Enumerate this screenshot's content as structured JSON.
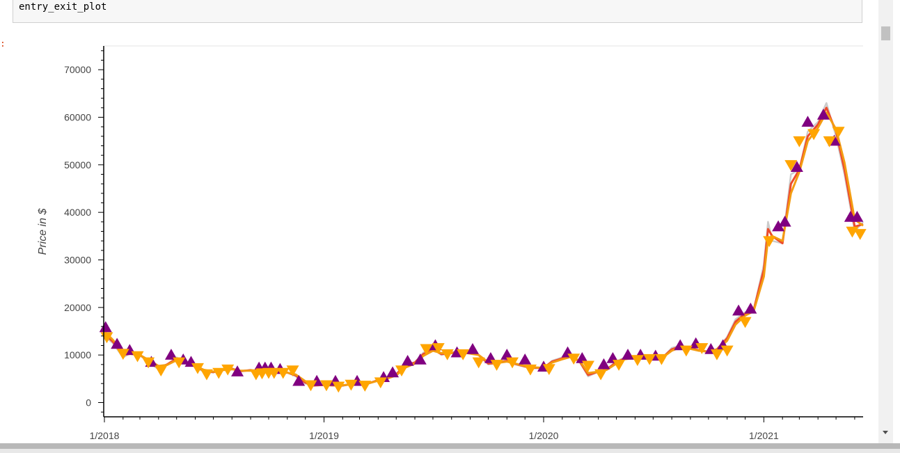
{
  "cell": {
    "code": "entry_exit_plot",
    "out_prompt": ":"
  },
  "chart_data": {
    "type": "line",
    "title": "",
    "xlabel": "",
    "ylabel": "Price in $",
    "x_range": [
      "2018-01-01",
      "2021-06-15"
    ],
    "ylim": [
      -3000,
      75000
    ],
    "grid": false,
    "y_ticks": [
      "0",
      "10000",
      "20000",
      "30000",
      "40000",
      "50000",
      "60000",
      "70000"
    ],
    "x_ticks": [
      "1/2018",
      "1/2019",
      "1/2020",
      "1/2021"
    ],
    "x_tick_dates": [
      "2018-01-01",
      "2019-01-01",
      "2020-01-01",
      "2021-01-01"
    ],
    "colors": {
      "close": "#cccccc",
      "fast_ma": "#ee4b2b",
      "slow_ma": "#f39c12",
      "entry": "#800080",
      "exit": "#ffa500"
    },
    "series": [
      {
        "type": "line",
        "x": [
          "2018-01-01",
          "2018-01-15",
          "2018-02-01",
          "2018-02-15",
          "2018-03-01",
          "2018-03-15",
          "2018-04-01",
          "2018-04-15",
          "2018-05-01",
          "2018-05-15",
          "2018-06-01",
          "2018-06-15",
          "2018-07-01",
          "2018-07-15",
          "2018-08-01",
          "2018-08-15",
          "2018-09-01",
          "2018-09-15",
          "2018-10-01",
          "2018-10-15",
          "2018-11-01",
          "2018-11-15",
          "2018-12-01",
          "2018-12-15",
          "2019-01-01",
          "2019-01-15",
          "2019-02-01",
          "2019-02-15",
          "2019-03-01",
          "2019-03-15",
          "2019-04-01",
          "2019-04-15",
          "2019-05-01",
          "2019-05-15",
          "2019-06-01",
          "2019-06-15",
          "2019-07-01",
          "2019-07-15",
          "2019-08-01",
          "2019-08-15",
          "2019-09-01",
          "2019-09-15",
          "2019-10-01",
          "2019-10-15",
          "2019-11-01",
          "2019-11-15",
          "2019-12-01",
          "2019-12-15",
          "2020-01-01",
          "2020-01-15",
          "2020-02-01",
          "2020-02-15",
          "2020-03-01",
          "2020-03-15",
          "2020-04-01",
          "2020-04-15",
          "2020-05-01",
          "2020-05-15",
          "2020-06-01",
          "2020-06-15",
          "2020-07-01",
          "2020-07-15",
          "2020-08-01",
          "2020-08-15",
          "2020-09-01",
          "2020-09-15",
          "2020-10-01",
          "2020-10-15",
          "2020-11-01",
          "2020-11-15",
          "2020-12-01",
          "2020-12-15",
          "2021-01-01",
          "2021-01-08",
          "2021-01-15",
          "2021-02-01",
          "2021-02-15",
          "2021-03-01",
          "2021-03-15",
          "2021-04-01",
          "2021-04-15",
          "2021-05-01",
          "2021-05-15",
          "2021-06-01",
          "2021-06-15"
        ],
        "values": [
          14000,
          12500,
          9500,
          10500,
          10000,
          8500,
          7000,
          8000,
          9500,
          8500,
          7500,
          6500,
          6300,
          7000,
          7200,
          6500,
          6900,
          6500,
          6500,
          6400,
          6300,
          5500,
          4000,
          3500,
          3700,
          3600,
          3500,
          3900,
          3800,
          4000,
          4800,
          5200,
          6000,
          8000,
          8500,
          10500,
          11500,
          10000,
          10500,
          11000,
          10500,
          10000,
          8000,
          8300,
          9000,
          8000,
          7500,
          7200,
          7200,
          8800,
          9500,
          10000,
          8500,
          5500,
          6500,
          7000,
          8700,
          9500,
          9800,
          9500,
          9200,
          9200,
          11500,
          12000,
          11500,
          11000,
          10600,
          11200,
          13800,
          17500,
          19000,
          19500,
          29000,
          38000,
          34000,
          33500,
          48000,
          49000,
          57000,
          59000,
          63000,
          56000,
          48000,
          36000,
          38000
        ],
        "color": "#cccccc"
      },
      {
        "type": "line",
        "values": [
          14500,
          12800,
          10000,
          10300,
          10000,
          8800,
          7300,
          8000,
          9200,
          8600,
          7600,
          6700,
          6400,
          6900,
          7100,
          6600,
          6800,
          6500,
          6500,
          6400,
          6300,
          5700,
          4200,
          3600,
          3700,
          3600,
          3600,
          3850,
          3800,
          4000,
          4700,
          5100,
          5900,
          7700,
          8400,
          10200,
          11200,
          10200,
          10400,
          10800,
          10400,
          10000,
          8200,
          8300,
          8800,
          8100,
          7600,
          7300,
          7300,
          8600,
          9300,
          9800,
          8600,
          5800,
          6500,
          7000,
          8500,
          9300,
          9600,
          9500,
          9200,
          9300,
          11200,
          11800,
          11400,
          11000,
          10700,
          11200,
          13500,
          17000,
          18700,
          19400,
          28000,
          36500,
          35000,
          33500,
          46000,
          49000,
          56000,
          58500,
          62000,
          57000,
          49000,
          37000,
          37500
        ],
        "color": "#ee4b2b"
      },
      {
        "type": "line",
        "values": [
          15000,
          13200,
          10600,
          10200,
          10000,
          9000,
          7700,
          7900,
          8900,
          8600,
          7700,
          6900,
          6500,
          6800,
          7000,
          6700,
          6700,
          6500,
          6500,
          6400,
          6300,
          5900,
          4500,
          3800,
          3700,
          3650,
          3650,
          3800,
          3800,
          4000,
          4600,
          5000,
          5700,
          7300,
          8200,
          9800,
          10900,
          10400,
          10400,
          10600,
          10300,
          10000,
          8500,
          8300,
          8600,
          8200,
          7700,
          7400,
          7300,
          8400,
          9100,
          9600,
          8800,
          6200,
          6500,
          6900,
          8200,
          9100,
          9400,
          9400,
          9200,
          9300,
          10900,
          11600,
          11300,
          10900,
          10700,
          11100,
          13000,
          16400,
          18300,
          19200,
          26500,
          34500,
          35000,
          34000,
          44000,
          48500,
          55000,
          57800,
          61000,
          57500,
          50500,
          38500,
          37200
        ],
        "color": "#f39c12"
      }
    ],
    "entries": {
      "x": [
        "2018-01-03",
        "2018-01-22",
        "2018-02-12",
        "2018-03-20",
        "2018-04-22",
        "2018-05-12",
        "2018-05-25",
        "2018-08-10",
        "2018-09-15",
        "2018-09-25",
        "2018-10-05",
        "2018-10-20",
        "2018-11-20",
        "2018-12-20",
        "2019-01-20",
        "2019-02-25",
        "2019-04-10",
        "2019-04-25",
        "2019-05-20",
        "2019-06-10",
        "2019-07-05",
        "2019-08-10",
        "2019-09-05",
        "2019-10-05",
        "2019-11-01",
        "2019-12-01",
        "2020-01-01",
        "2020-02-10",
        "2020-03-05",
        "2020-04-10",
        "2020-04-25",
        "2020-05-20",
        "2020-06-10",
        "2020-07-05",
        "2020-08-15",
        "2020-09-10",
        "2020-10-05",
        "2020-10-25",
        "2020-11-20",
        "2020-12-10",
        "2021-01-25",
        "2021-02-05",
        "2021-02-25",
        "2021-03-15",
        "2021-04-10",
        "2021-04-28",
        "2021-05-25",
        "2021-06-05"
      ],
      "values": [
        15800,
        12300,
        11000,
        8500,
        10000,
        9000,
        8500,
        6500,
        7300,
        7300,
        7300,
        7000,
        4500,
        4500,
        4500,
        4500,
        5300,
        6300,
        8700,
        9000,
        12000,
        10500,
        11200,
        9300,
        10000,
        9000,
        7500,
        10500,
        9300,
        8000,
        9300,
        10000,
        10000,
        9800,
        12000,
        12400,
        11200,
        12000,
        19300,
        19700,
        37000,
        38000,
        49500,
        59000,
        60500,
        55000,
        39000,
        39000
      ],
      "color": "#800080"
    },
    "exits": {
      "x": [
        "2018-01-05",
        "2018-02-01",
        "2018-02-25",
        "2018-03-15",
        "2018-04-05",
        "2018-05-05",
        "2018-06-05",
        "2018-06-20",
        "2018-07-10",
        "2018-07-25",
        "2018-09-10",
        "2018-09-20",
        "2018-10-01",
        "2018-10-10",
        "2018-10-25",
        "2018-11-10",
        "2018-12-10",
        "2019-01-05",
        "2019-01-25",
        "2019-02-15",
        "2019-03-10",
        "2019-04-05",
        "2019-05-10",
        "2019-06-20",
        "2019-07-10",
        "2019-07-25",
        "2019-08-20",
        "2019-09-15",
        "2019-10-15",
        "2019-11-10",
        "2019-12-10",
        "2020-01-10",
        "2020-02-20",
        "2020-03-15",
        "2020-04-05",
        "2020-05-05",
        "2020-06-05",
        "2020-06-25",
        "2020-07-15",
        "2020-08-25",
        "2020-09-20",
        "2020-10-15",
        "2020-11-01",
        "2020-12-01",
        "2021-01-10",
        "2021-02-15",
        "2021-03-01",
        "2021-03-25",
        "2021-04-20",
        "2021-05-05",
        "2021-05-28",
        "2021-06-10"
      ],
      "values": [
        13800,
        10300,
        9800,
        8500,
        6800,
        8500,
        7300,
        6000,
        6300,
        7000,
        6000,
        6200,
        6300,
        6300,
        6300,
        6800,
        3700,
        3700,
        3400,
        3800,
        3600,
        4300,
        6800,
        11300,
        11500,
        10200,
        10200,
        8500,
        8000,
        8500,
        7000,
        7100,
        9300,
        7800,
        6000,
        8000,
        9000,
        9200,
        9200,
        11000,
        11500,
        10200,
        11000,
        17000,
        34000,
        50000,
        55000,
        56500,
        55000,
        57000,
        36000,
        35500
      ],
      "color": "#ffa500"
    }
  }
}
